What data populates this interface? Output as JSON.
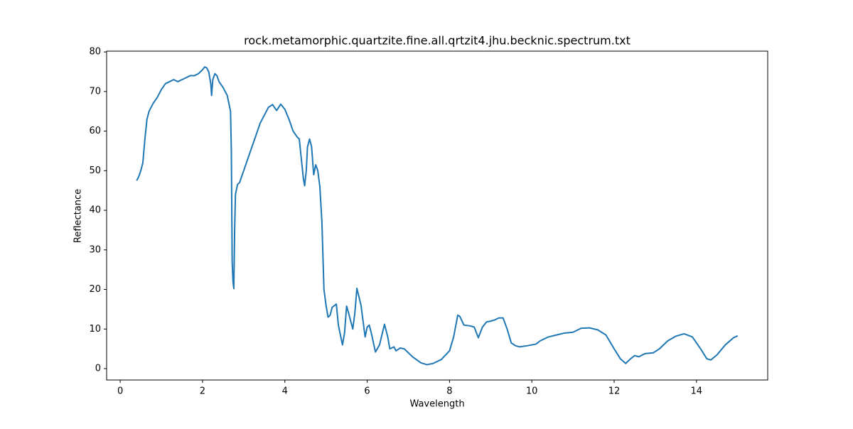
{
  "chart_data": {
    "type": "line",
    "title": "rock.metamorphic.quartzite.fine.all.qrtzit4.jhu.becknic.spectrum.txt",
    "x_label": "Wavelength",
    "y_label": "Reflectance",
    "x": [
      0.4,
      0.45,
      0.5,
      0.55,
      0.6,
      0.65,
      0.7,
      0.8,
      0.9,
      1.0,
      1.1,
      1.2,
      1.3,
      1.4,
      1.5,
      1.6,
      1.7,
      1.8,
      1.9,
      2.0,
      2.05,
      2.1,
      2.15,
      2.2,
      2.22,
      2.25,
      2.3,
      2.35,
      2.4,
      2.5,
      2.6,
      2.65,
      2.68,
      2.7,
      2.72,
      2.74,
      2.76,
      2.78,
      2.8,
      2.85,
      2.9,
      3.0,
      3.1,
      3.2,
      3.3,
      3.4,
      3.5,
      3.6,
      3.7,
      3.8,
      3.9,
      4.0,
      4.1,
      4.2,
      4.3,
      4.35,
      4.4,
      4.45,
      4.48,
      4.52,
      4.55,
      4.6,
      4.65,
      4.7,
      4.75,
      4.8,
      4.85,
      4.9,
      4.95,
      5.0,
      5.05,
      5.1,
      5.15,
      5.25,
      5.3,
      5.4,
      5.45,
      5.5,
      5.55,
      5.65,
      5.7,
      5.75,
      5.85,
      5.95,
      6.0,
      6.05,
      6.1,
      6.2,
      6.3,
      6.42,
      6.5,
      6.55,
      6.65,
      6.7,
      6.8,
      6.9,
      7.0,
      7.1,
      7.3,
      7.45,
      7.6,
      7.8,
      8.0,
      8.1,
      8.2,
      8.25,
      8.35,
      8.5,
      8.6,
      8.7,
      8.8,
      8.9,
      9.0,
      9.1,
      9.2,
      9.3,
      9.4,
      9.5,
      9.6,
      9.7,
      9.9,
      10.1,
      10.2,
      10.4,
      10.6,
      10.8,
      11.0,
      11.2,
      11.4,
      11.6,
      11.8,
      12.0,
      12.15,
      12.28,
      12.4,
      12.5,
      12.6,
      12.75,
      12.95,
      13.1,
      13.3,
      13.5,
      13.7,
      13.9,
      14.1,
      14.25,
      14.35,
      14.5,
      14.7,
      14.9,
      15.0
    ],
    "series": [
      {
        "color": "#1f77b4",
        "values": [
          47.5,
          48.5,
          50,
          52,
          58,
          63,
          65,
          67,
          68.5,
          70.5,
          72,
          72.5,
          73,
          72.5,
          73,
          73.5,
          74,
          74,
          74.5,
          75.5,
          76.2,
          76,
          75,
          72,
          69,
          73,
          74.5,
          74,
          72.5,
          71,
          69,
          66.5,
          65,
          55,
          27,
          22,
          20.2,
          35,
          44,
          46.5,
          47,
          50,
          53,
          56,
          59,
          62,
          64,
          66,
          66.7,
          65.2,
          66.8,
          65.5,
          63,
          60,
          58.5,
          58,
          53,
          48,
          46.2,
          50,
          56,
          58,
          56,
          49,
          51.5,
          50,
          46,
          37,
          20,
          16,
          13,
          13.5,
          15.5,
          16.3,
          11,
          6,
          9,
          15.8,
          14,
          10,
          14,
          20.3,
          16,
          8,
          10.5,
          11,
          9,
          4.2,
          6,
          11.2,
          8,
          5,
          5.5,
          4.5,
          5.2,
          5,
          4,
          3,
          1.5,
          1,
          1.3,
          2.3,
          4.5,
          8,
          13.5,
          13.2,
          11,
          10.8,
          10.5,
          7.8,
          10.5,
          11.8,
          12,
          12.3,
          12.8,
          12.8,
          10,
          6.5,
          5.8,
          5.5,
          5.8,
          6.2,
          7,
          8,
          8.5,
          9,
          9.2,
          10.2,
          10.3,
          9.8,
          8.5,
          5,
          2.5,
          1.3,
          2.5,
          3.3,
          3.0,
          3.8,
          4.0,
          5,
          7,
          8.2,
          8.8,
          8,
          5,
          2.5,
          2.2,
          3.5,
          6,
          7.8,
          8.3
        ]
      }
    ],
    "xlim": [
      -0.33,
      15.73
    ],
    "ylim": [
      -2.87,
      80.2
    ],
    "xticks": [
      0,
      2,
      4,
      6,
      8,
      10,
      12,
      14
    ],
    "yticks": [
      0,
      10,
      20,
      30,
      40,
      50,
      60,
      70,
      80
    ]
  }
}
